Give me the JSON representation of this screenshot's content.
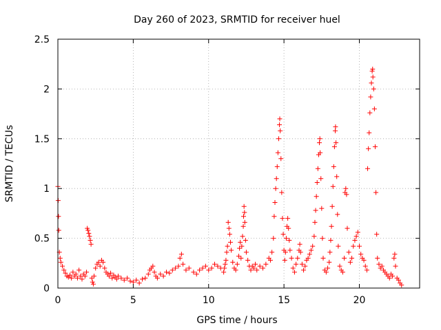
{
  "chart_data": {
    "type": "scatter",
    "title": "Day 260 of 2023, SRMTID for receiver huel",
    "xlabel": "GPS time / hours",
    "ylabel": "SRMTID / TECUs",
    "xlim": [
      0,
      24
    ],
    "ylim": [
      0,
      2.5
    ],
    "xticks": [
      0,
      5,
      10,
      15,
      20
    ],
    "xtick_labels": [
      "0",
      "5",
      "10",
      "15",
      "20"
    ],
    "yticks": [
      0,
      0.5,
      1,
      1.5,
      2,
      2.5
    ],
    "ytick_labels": [
      "0",
      "0.5",
      "1",
      "1.5",
      "2",
      "2.5"
    ],
    "grid": true,
    "marker": "+",
    "color": "#ff0000",
    "series": [
      {
        "name": "SRMTID",
        "points": [
          [
            0.0,
            1.02
          ],
          [
            0.02,
            0.88
          ],
          [
            0.04,
            0.72
          ],
          [
            0.06,
            0.58
          ],
          [
            0.1,
            0.36
          ],
          [
            0.15,
            0.3
          ],
          [
            0.2,
            0.26
          ],
          [
            0.3,
            0.22
          ],
          [
            0.4,
            0.18
          ],
          [
            0.5,
            0.15
          ],
          [
            0.6,
            0.12
          ],
          [
            0.7,
            0.11
          ],
          [
            0.8,
            0.13
          ],
          [
            0.9,
            0.1
          ],
          [
            1.0,
            0.16
          ],
          [
            1.1,
            0.12
          ],
          [
            1.2,
            0.14
          ],
          [
            1.3,
            0.1
          ],
          [
            1.4,
            0.18
          ],
          [
            1.5,
            0.12
          ],
          [
            1.6,
            0.09
          ],
          [
            1.7,
            0.14
          ],
          [
            1.8,
            0.12
          ],
          [
            1.9,
            0.16
          ],
          [
            1.95,
            0.6
          ],
          [
            2.0,
            0.58
          ],
          [
            2.05,
            0.55
          ],
          [
            2.1,
            0.52
          ],
          [
            2.15,
            0.48
          ],
          [
            2.2,
            0.44
          ],
          [
            2.25,
            0.1
          ],
          [
            2.3,
            0.06
          ],
          [
            2.35,
            0.04
          ],
          [
            2.4,
            0.12
          ],
          [
            2.5,
            0.2
          ],
          [
            2.6,
            0.24
          ],
          [
            2.7,
            0.26
          ],
          [
            2.8,
            0.22
          ],
          [
            2.9,
            0.28
          ],
          [
            3.0,
            0.26
          ],
          [
            3.1,
            0.2
          ],
          [
            3.2,
            0.16
          ],
          [
            3.3,
            0.14
          ],
          [
            3.4,
            0.12
          ],
          [
            3.5,
            0.15
          ],
          [
            3.6,
            0.1
          ],
          [
            3.7,
            0.13
          ],
          [
            3.8,
            0.11
          ],
          [
            3.9,
            0.09
          ],
          [
            4.0,
            0.12
          ],
          [
            4.2,
            0.1
          ],
          [
            4.4,
            0.08
          ],
          [
            4.6,
            0.1
          ],
          [
            4.8,
            0.07
          ],
          [
            5.0,
            0.06
          ],
          [
            5.2,
            0.08
          ],
          [
            5.4,
            0.05
          ],
          [
            5.6,
            0.09
          ],
          [
            5.8,
            0.1
          ],
          [
            6.0,
            0.14
          ],
          [
            6.1,
            0.18
          ],
          [
            6.2,
            0.2
          ],
          [
            6.3,
            0.22
          ],
          [
            6.4,
            0.16
          ],
          [
            6.5,
            0.12
          ],
          [
            6.6,
            0.1
          ],
          [
            6.8,
            0.14
          ],
          [
            7.0,
            0.12
          ],
          [
            7.2,
            0.16
          ],
          [
            7.4,
            0.15
          ],
          [
            7.6,
            0.18
          ],
          [
            7.8,
            0.2
          ],
          [
            8.0,
            0.22
          ],
          [
            8.1,
            0.3
          ],
          [
            8.2,
            0.34
          ],
          [
            8.3,
            0.24
          ],
          [
            8.5,
            0.18
          ],
          [
            8.7,
            0.2
          ],
          [
            9.0,
            0.16
          ],
          [
            9.2,
            0.14
          ],
          [
            9.4,
            0.18
          ],
          [
            9.6,
            0.2
          ],
          [
            9.8,
            0.22
          ],
          [
            10.0,
            0.18
          ],
          [
            10.2,
            0.2
          ],
          [
            10.4,
            0.24
          ],
          [
            10.6,
            0.22
          ],
          [
            10.8,
            0.2
          ],
          [
            11.0,
            0.16
          ],
          [
            11.05,
            0.2
          ],
          [
            11.1,
            0.24
          ],
          [
            11.15,
            0.28
          ],
          [
            11.2,
            0.36
          ],
          [
            11.25,
            0.42
          ],
          [
            11.3,
            0.66
          ],
          [
            11.35,
            0.6
          ],
          [
            11.4,
            0.54
          ],
          [
            11.45,
            0.46
          ],
          [
            11.5,
            0.38
          ],
          [
            11.6,
            0.26
          ],
          [
            11.7,
            0.2
          ],
          [
            11.8,
            0.18
          ],
          [
            11.9,
            0.24
          ],
          [
            12.0,
            0.32
          ],
          [
            12.05,
            0.4
          ],
          [
            12.1,
            0.46
          ],
          [
            12.15,
            0.3
          ],
          [
            12.2,
            0.42
          ],
          [
            12.25,
            0.52
          ],
          [
            12.3,
            0.62
          ],
          [
            12.32,
            0.72
          ],
          [
            12.35,
            0.82
          ],
          [
            12.38,
            0.76
          ],
          [
            12.4,
            0.66
          ],
          [
            12.45,
            0.48
          ],
          [
            12.5,
            0.36
          ],
          [
            12.6,
            0.28
          ],
          [
            12.7,
            0.22
          ],
          [
            12.8,
            0.18
          ],
          [
            12.9,
            0.22
          ],
          [
            13.0,
            0.2
          ],
          [
            13.1,
            0.24
          ],
          [
            13.2,
            0.18
          ],
          [
            13.4,
            0.22
          ],
          [
            13.6,
            0.2
          ],
          [
            13.8,
            0.24
          ],
          [
            14.0,
            0.3
          ],
          [
            14.1,
            0.28
          ],
          [
            14.2,
            0.36
          ],
          [
            14.3,
            0.5
          ],
          [
            14.35,
            0.72
          ],
          [
            14.4,
            0.86
          ],
          [
            14.45,
            1.0
          ],
          [
            14.5,
            1.1
          ],
          [
            14.55,
            1.22
          ],
          [
            14.6,
            1.36
          ],
          [
            14.65,
            1.5
          ],
          [
            14.7,
            1.64
          ],
          [
            14.72,
            1.7
          ],
          [
            14.75,
            1.58
          ],
          [
            14.8,
            1.3
          ],
          [
            14.85,
            0.96
          ],
          [
            14.9,
            0.7
          ],
          [
            14.95,
            0.54
          ],
          [
            15.0,
            0.38
          ],
          [
            15.05,
            0.28
          ],
          [
            15.1,
            0.36
          ],
          [
            15.15,
            0.5
          ],
          [
            15.2,
            0.62
          ],
          [
            15.25,
            0.7
          ],
          [
            15.3,
            0.6
          ],
          [
            15.35,
            0.48
          ],
          [
            15.4,
            0.38
          ],
          [
            15.5,
            0.3
          ],
          [
            15.6,
            0.2
          ],
          [
            15.7,
            0.16
          ],
          [
            15.8,
            0.24
          ],
          [
            15.9,
            0.3
          ],
          [
            16.0,
            0.38
          ],
          [
            16.05,
            0.44
          ],
          [
            16.1,
            0.36
          ],
          [
            16.2,
            0.24
          ],
          [
            16.3,
            0.18
          ],
          [
            16.4,
            0.22
          ],
          [
            16.5,
            0.28
          ],
          [
            16.6,
            0.3
          ],
          [
            16.7,
            0.34
          ],
          [
            16.8,
            0.38
          ],
          [
            16.9,
            0.42
          ],
          [
            17.0,
            0.52
          ],
          [
            17.05,
            0.66
          ],
          [
            17.1,
            0.78
          ],
          [
            17.15,
            0.92
          ],
          [
            17.2,
            1.06
          ],
          [
            17.25,
            1.2
          ],
          [
            17.3,
            1.34
          ],
          [
            17.35,
            1.46
          ],
          [
            17.38,
            1.5
          ],
          [
            17.4,
            1.36
          ],
          [
            17.45,
            1.1
          ],
          [
            17.5,
            0.8
          ],
          [
            17.55,
            0.5
          ],
          [
            17.6,
            0.3
          ],
          [
            17.7,
            0.18
          ],
          [
            17.8,
            0.16
          ],
          [
            17.9,
            0.2
          ],
          [
            18.0,
            0.26
          ],
          [
            18.05,
            0.36
          ],
          [
            18.1,
            0.48
          ],
          [
            18.15,
            0.62
          ],
          [
            18.2,
            0.82
          ],
          [
            18.25,
            1.02
          ],
          [
            18.3,
            1.22
          ],
          [
            18.35,
            1.42
          ],
          [
            18.4,
            1.58
          ],
          [
            18.42,
            1.62
          ],
          [
            18.45,
            1.46
          ],
          [
            18.5,
            1.12
          ],
          [
            18.55,
            0.74
          ],
          [
            18.6,
            0.42
          ],
          [
            18.7,
            0.22
          ],
          [
            18.8,
            0.18
          ],
          [
            18.9,
            0.16
          ],
          [
            19.0,
            0.3
          ],
          [
            19.05,
            0.96
          ],
          [
            19.1,
            1.0
          ],
          [
            19.15,
            0.94
          ],
          [
            19.2,
            0.6
          ],
          [
            19.3,
            0.36
          ],
          [
            19.4,
            0.26
          ],
          [
            19.5,
            0.3
          ],
          [
            19.6,
            0.42
          ],
          [
            19.7,
            0.48
          ],
          [
            19.8,
            0.52
          ],
          [
            19.9,
            0.56
          ],
          [
            20.0,
            0.42
          ],
          [
            20.1,
            0.34
          ],
          [
            20.2,
            0.3
          ],
          [
            20.3,
            0.28
          ],
          [
            20.4,
            0.22
          ],
          [
            20.5,
            0.18
          ],
          [
            20.55,
            1.2
          ],
          [
            20.6,
            1.4
          ],
          [
            20.65,
            1.56
          ],
          [
            20.7,
            1.76
          ],
          [
            20.75,
            1.92
          ],
          [
            20.8,
            2.06
          ],
          [
            20.85,
            2.18
          ],
          [
            20.88,
            2.2
          ],
          [
            20.9,
            2.12
          ],
          [
            20.95,
            2.0
          ],
          [
            21.0,
            1.8
          ],
          [
            21.05,
            1.42
          ],
          [
            21.1,
            0.96
          ],
          [
            21.15,
            0.54
          ],
          [
            21.2,
            0.3
          ],
          [
            21.3,
            0.24
          ],
          [
            21.4,
            0.2
          ],
          [
            21.5,
            0.22
          ],
          [
            21.6,
            0.18
          ],
          [
            21.7,
            0.16
          ],
          [
            21.8,
            0.14
          ],
          [
            21.9,
            0.12
          ],
          [
            22.0,
            0.1
          ],
          [
            22.1,
            0.14
          ],
          [
            22.2,
            0.12
          ],
          [
            22.3,
            0.3
          ],
          [
            22.35,
            0.34
          ],
          [
            22.4,
            0.22
          ],
          [
            22.5,
            0.1
          ],
          [
            22.6,
            0.08
          ],
          [
            22.7,
            0.05
          ],
          [
            22.8,
            0.03
          ]
        ]
      }
    ]
  }
}
